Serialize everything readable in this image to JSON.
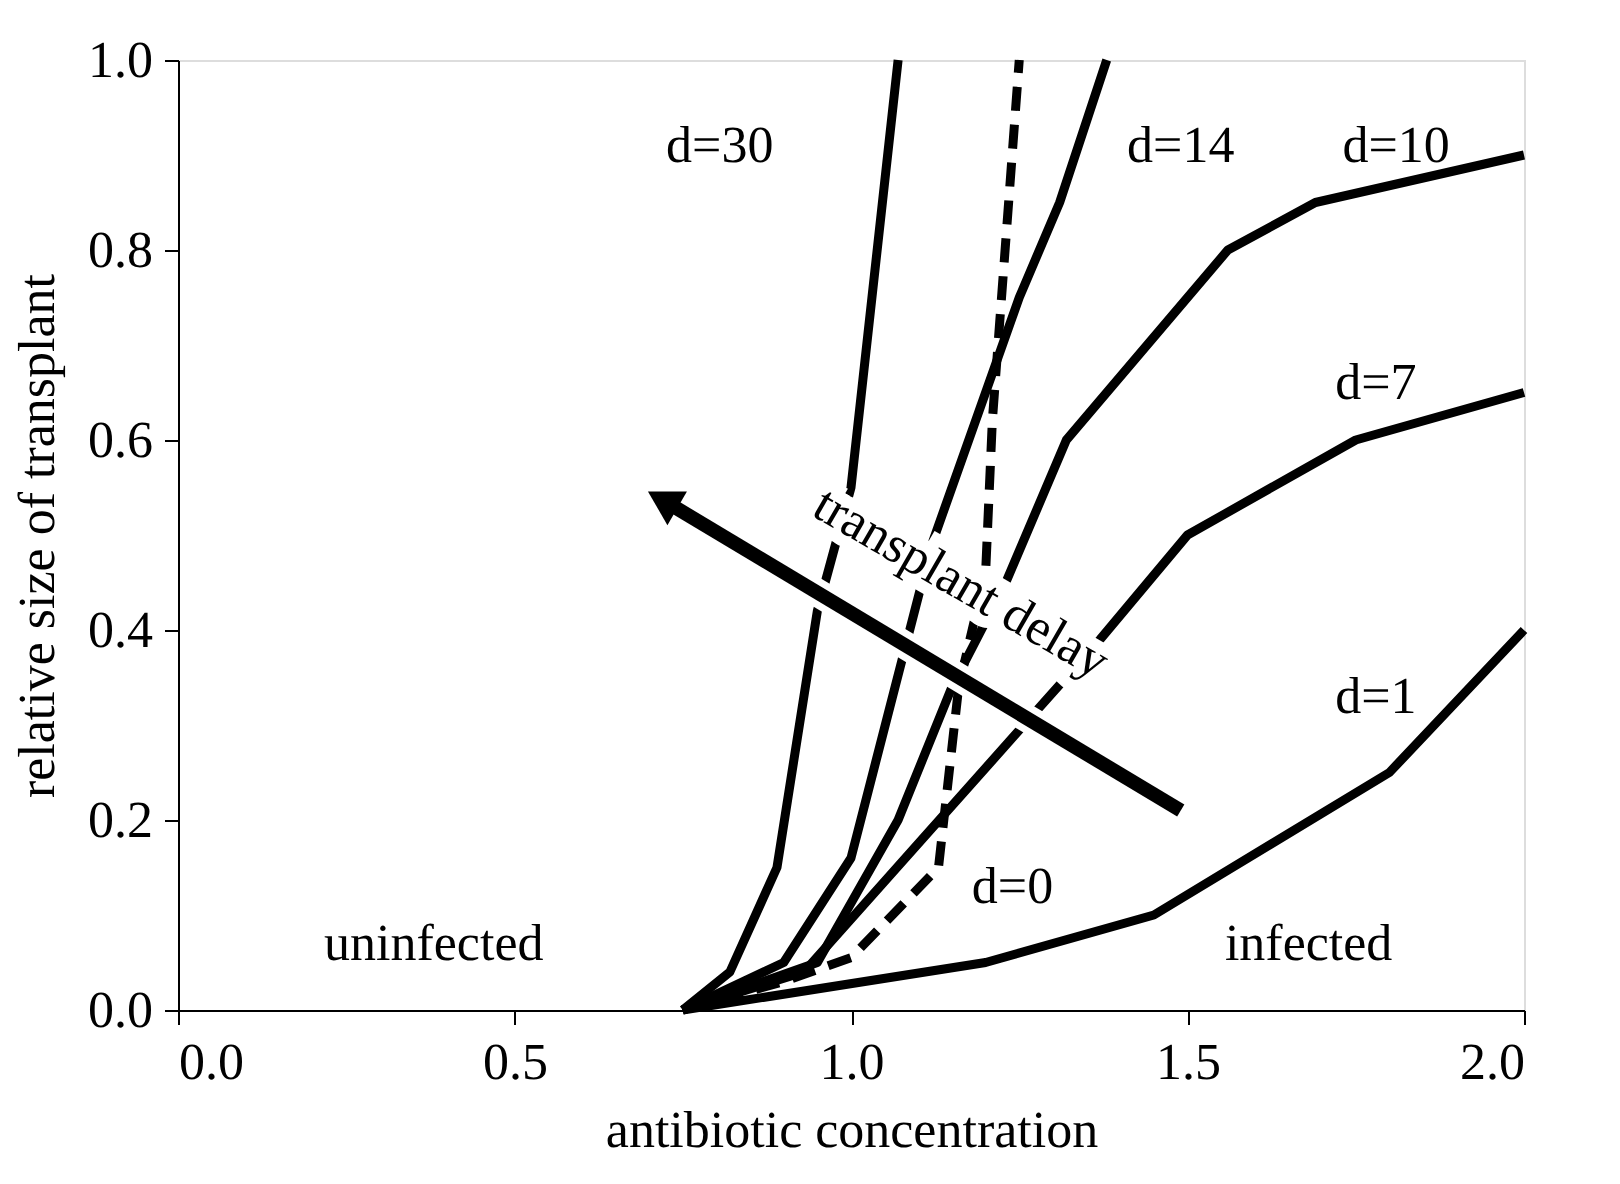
{
  "chart_data": {
    "type": "line",
    "xlabel": "antibiotic concentration",
    "ylabel": "relative size of transplant",
    "xlim": [
      0,
      2
    ],
    "ylim": [
      0,
      1
    ],
    "xticks": [
      {
        "value": 0,
        "label": "0.0"
      },
      {
        "value": 0.5,
        "label": "0.5"
      },
      {
        "value": 1,
        "label": "1.0"
      },
      {
        "value": 1.5,
        "label": "1.5"
      },
      {
        "value": 2,
        "label": "2.0"
      }
    ],
    "yticks": [
      {
        "value": 0,
        "label": "0.0"
      },
      {
        "value": 0.2,
        "label": "0.2"
      },
      {
        "value": 0.4,
        "label": "0.4"
      },
      {
        "value": 0.6,
        "label": "0.6"
      },
      {
        "value": 0.8,
        "label": "0.8"
      },
      {
        "value": 1,
        "label": "1.0"
      }
    ],
    "grid": false,
    "legend": false,
    "marker": "none",
    "series": [
      {
        "name": "d=30",
        "color": "#000000",
        "line_style": "solid",
        "x": [
          0.75,
          0.82,
          0.89,
          0.95,
          1.0,
          1.07
        ],
        "values": [
          0,
          0.04,
          0.15,
          0.42,
          0.55,
          1.0
        ]
      },
      {
        "name": "d=14",
        "color": "#000000",
        "line_style": "solid",
        "x": [
          0.75,
          0.9,
          1.0,
          1.12,
          1.25,
          1.31,
          1.38
        ],
        "values": [
          0,
          0.05,
          0.16,
          0.49,
          0.75,
          0.85,
          1.0
        ]
      },
      {
        "name": "d=10",
        "color": "#000000",
        "line_style": "solid",
        "x": [
          0.75,
          0.95,
          1.07,
          1.15,
          1.23,
          1.32,
          1.56,
          1.69,
          2.0
        ],
        "values": [
          0,
          0.05,
          0.2,
          0.34,
          0.45,
          0.6,
          0.8,
          0.85,
          0.9
        ]
      },
      {
        "name": "d=7",
        "color": "#000000",
        "line_style": "solid",
        "x": [
          0.75,
          0.93,
          1.37,
          1.5,
          1.75,
          2.0
        ],
        "values": [
          0,
          0.04,
          0.39,
          0.5,
          0.6,
          0.65
        ]
      },
      {
        "name": "d=1",
        "color": "#000000",
        "line_style": "solid",
        "x": [
          0.75,
          1.2,
          1.45,
          1.8,
          2.0
        ],
        "values": [
          0,
          0.05,
          0.1,
          0.25,
          0.4
        ]
      },
      {
        "name": "d=0",
        "color": "#000000",
        "line_style": "dashed",
        "x": [
          0.75,
          0.9,
          1.0,
          1.13,
          1.16,
          1.2,
          1.21,
          1.25
        ],
        "values": [
          0,
          0.03,
          0.055,
          0.15,
          0.34,
          0.46,
          0.62,
          1.0
        ]
      }
    ],
    "annotations": [
      "uninfected",
      "infected",
      "transplant delay"
    ]
  }
}
